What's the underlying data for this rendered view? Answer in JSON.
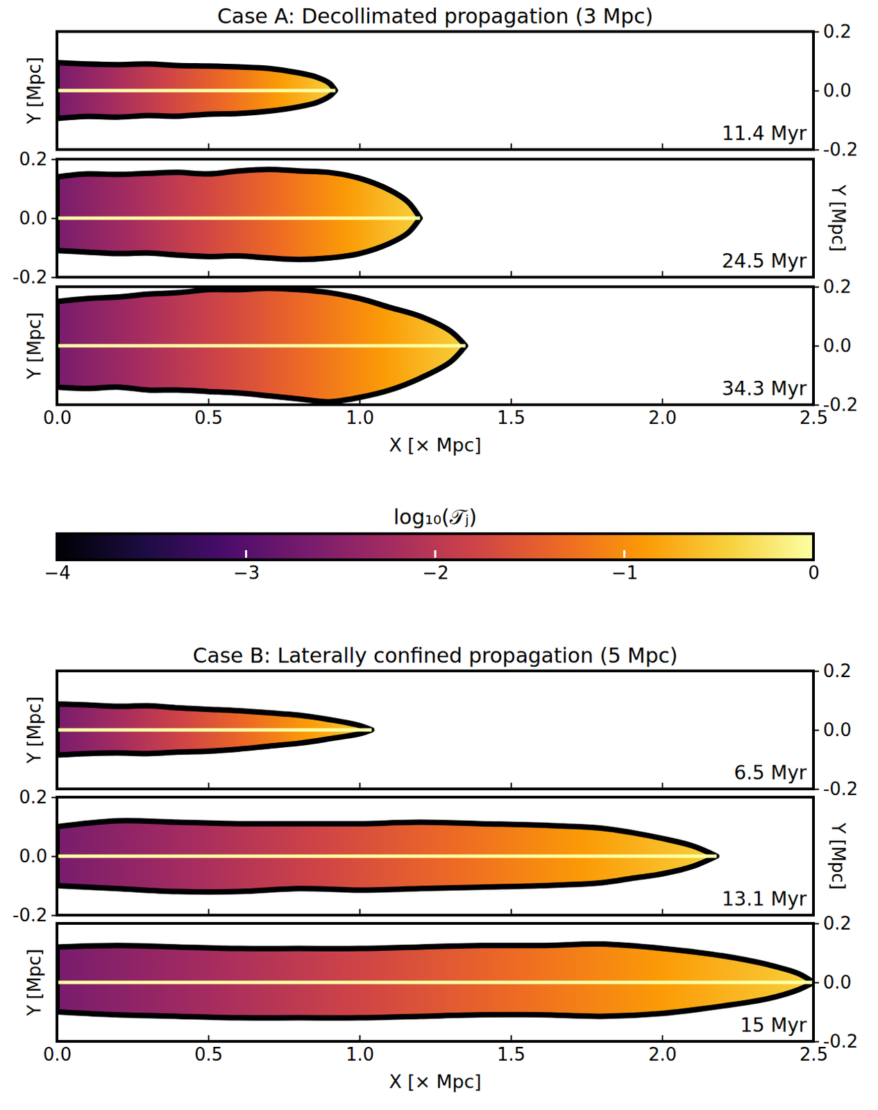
{
  "chart_data": [
    {
      "type": "area",
      "title": "Case A: Decollimated propagation (3 Mpc)",
      "ylabel": "Y [Mpc]",
      "annotation": "11.4 Myr",
      "xlim": [
        0,
        2.5
      ],
      "ylim": [
        -0.2,
        0.2
      ],
      "xticks": [
        {
          "value": 0,
          "label": "0.0"
        },
        0.5,
        {
          "value": 1,
          "label": "1.0"
        },
        1.5,
        {
          "value": 2,
          "label": "2.0"
        },
        2.5
      ],
      "yticks": [
        -0.2,
        {
          "value": 0,
          "label": "0.0"
        },
        0.2
      ],
      "tick_labels": "y",
      "x": [
        0,
        0.1,
        0.2,
        0.3,
        0.4,
        0.5,
        0.6,
        0.7,
        0.8,
        0.86,
        0.9,
        0.92
      ],
      "series": [
        {
          "color": "#000004",
          "values": [
            0.095,
            0.09,
            0.088,
            0.09,
            0.085,
            0.083,
            0.08,
            0.075,
            0.06,
            0.045,
            0.025,
            0
          ]
        },
        {
          "color": "#000004",
          "values": [
            -0.095,
            -0.088,
            -0.09,
            -0.085,
            -0.087,
            -0.08,
            -0.078,
            -0.07,
            -0.055,
            -0.04,
            -0.02,
            0
          ]
        },
        {
          "color": "#fcffa4",
          "type": "line",
          "values": [
            0,
            0,
            0,
            0,
            0,
            0,
            0,
            0,
            0,
            0,
            0,
            0
          ]
        }
      ]
    },
    {
      "type": "area",
      "ylabel": "Y [Mpc]",
      "annotation": "24.5 Myr",
      "xlim": [
        0,
        2.5
      ],
      "ylim": [
        -0.2,
        0.2
      ],
      "xticks": [
        {
          "value": 0,
          "label": "0.0"
        },
        0.5,
        {
          "value": 1,
          "label": "1.0"
        },
        1.5,
        {
          "value": 2,
          "label": "2.0"
        },
        2.5
      ],
      "yticks": [
        -0.2,
        {
          "value": 0,
          "label": "0.0"
        },
        0.2
      ],
      "tick_labels": "y",
      "x": [
        0,
        0.1,
        0.2,
        0.3,
        0.4,
        0.5,
        0.6,
        0.7,
        0.8,
        0.9,
        1.0,
        1.1,
        1.16,
        1.2
      ],
      "series": [
        {
          "color": "#000004",
          "values": [
            0.14,
            0.15,
            0.148,
            0.152,
            0.155,
            0.15,
            0.16,
            0.165,
            0.16,
            0.155,
            0.135,
            0.095,
            0.055,
            0
          ]
        },
        {
          "color": "#000004",
          "values": [
            -0.11,
            -0.115,
            -0.12,
            -0.118,
            -0.125,
            -0.13,
            -0.128,
            -0.135,
            -0.14,
            -0.135,
            -0.12,
            -0.085,
            -0.05,
            0
          ]
        },
        {
          "color": "#fcffa4",
          "type": "line",
          "values": [
            0,
            0,
            0,
            0,
            0,
            0,
            0,
            0,
            0,
            0,
            0,
            0,
            0,
            0
          ]
        }
      ]
    },
    {
      "type": "area",
      "xlabel": "X [× Mpc]",
      "ylabel": "Y [Mpc]",
      "annotation": "34.3 Myr",
      "xlim": [
        0,
        2.5
      ],
      "ylim": [
        -0.2,
        0.2
      ],
      "xticks": [
        {
          "value": 0,
          "label": "0.0"
        },
        0.5,
        {
          "value": 1,
          "label": "1.0"
        },
        1.5,
        {
          "value": 2,
          "label": "2.0"
        },
        2.5
      ],
      "yticks": [
        -0.2,
        {
          "value": 0,
          "label": "0.0"
        },
        0.2
      ],
      "x": [
        0,
        0.1,
        0.2,
        0.3,
        0.4,
        0.5,
        0.6,
        0.7,
        0.8,
        0.9,
        1.0,
        1.1,
        1.2,
        1.3,
        1.35
      ],
      "series": [
        {
          "color": "#000004",
          "values": [
            0.15,
            0.16,
            0.165,
            0.175,
            0.18,
            0.19,
            0.19,
            0.195,
            0.19,
            0.18,
            0.16,
            0.13,
            0.1,
            0.05,
            0
          ]
        },
        {
          "color": "#000004",
          "values": [
            -0.14,
            -0.145,
            -0.14,
            -0.15,
            -0.15,
            -0.155,
            -0.16,
            -0.17,
            -0.18,
            -0.19,
            -0.175,
            -0.15,
            -0.11,
            -0.055,
            0
          ]
        },
        {
          "color": "#fcffa4",
          "type": "line",
          "values": [
            0,
            0,
            0,
            0,
            0,
            0,
            0,
            0,
            0,
            0,
            0,
            0,
            0,
            0,
            0
          ]
        }
      ]
    },
    {
      "type": "area",
      "title": "Case B: Laterally confined propagation (5 Mpc)",
      "ylabel": "Y [Mpc]",
      "annotation": "6.5 Myr",
      "xlim": [
        0,
        2.5
      ],
      "ylim": [
        -0.2,
        0.2
      ],
      "xticks": [
        {
          "value": 0,
          "label": "0.0"
        },
        0.5,
        {
          "value": 1,
          "label": "1.0"
        },
        1.5,
        {
          "value": 2,
          "label": "2.0"
        },
        2.5
      ],
      "yticks": [
        -0.2,
        {
          "value": 0,
          "label": "0.0"
        },
        0.2
      ],
      "tick_labels": "y",
      "x": [
        0,
        0.1,
        0.2,
        0.3,
        0.4,
        0.5,
        0.6,
        0.7,
        0.8,
        0.9,
        1.0,
        1.04
      ],
      "series": [
        {
          "color": "#000004",
          "values": [
            0.088,
            0.085,
            0.08,
            0.082,
            0.075,
            0.07,
            0.065,
            0.058,
            0.05,
            0.035,
            0.015,
            0
          ]
        },
        {
          "color": "#000004",
          "values": [
            -0.085,
            -0.08,
            -0.078,
            -0.08,
            -0.075,
            -0.072,
            -0.065,
            -0.055,
            -0.045,
            -0.03,
            -0.013,
            0
          ]
        },
        {
          "color": "#fcffa4",
          "type": "line",
          "values": [
            0,
            0,
            0,
            0,
            0,
            0,
            0,
            0,
            0,
            0,
            0,
            0
          ]
        }
      ]
    },
    {
      "type": "area",
      "ylabel": "Y [Mpc]",
      "annotation": "13.1 Myr",
      "xlim": [
        0,
        2.5
      ],
      "ylim": [
        -0.2,
        0.2
      ],
      "xticks": [
        {
          "value": 0,
          "label": "0.0"
        },
        0.5,
        {
          "value": 1,
          "label": "1.0"
        },
        1.5,
        {
          "value": 2,
          "label": "2.0"
        },
        2.5
      ],
      "yticks": [
        -0.2,
        {
          "value": 0,
          "label": "0.0"
        },
        0.2
      ],
      "tick_labels": "y",
      "x": [
        0,
        0.2,
        0.4,
        0.6,
        0.8,
        1.0,
        1.2,
        1.4,
        1.6,
        1.8,
        1.9,
        2.0,
        2.1,
        2.18
      ],
      "series": [
        {
          "color": "#000004",
          "values": [
            0.1,
            0.12,
            0.115,
            0.11,
            0.11,
            0.11,
            0.115,
            0.11,
            0.105,
            0.095,
            0.08,
            0.06,
            0.035,
            0
          ]
        },
        {
          "color": "#000004",
          "values": [
            -0.1,
            -0.11,
            -0.12,
            -0.12,
            -0.11,
            -0.115,
            -0.11,
            -0.105,
            -0.1,
            -0.09,
            -0.075,
            -0.06,
            -0.035,
            0
          ]
        },
        {
          "color": "#fcffa4",
          "type": "line",
          "values": [
            0,
            0,
            0,
            0,
            0,
            0,
            0,
            0,
            0,
            0,
            0,
            0,
            0,
            0
          ]
        }
      ]
    },
    {
      "type": "area",
      "xlabel": "X [× Mpc]",
      "ylabel": "Y [Mpc]",
      "annotation": "15 Myr",
      "xlim": [
        0,
        2.5
      ],
      "ylim": [
        -0.2,
        0.2
      ],
      "xticks": [
        {
          "value": 0,
          "label": "0.0"
        },
        0.5,
        {
          "value": 1,
          "label": "1.0"
        },
        1.5,
        {
          "value": 2,
          "label": "2.0"
        },
        2.5
      ],
      "yticks": [
        -0.2,
        {
          "value": 0,
          "label": "0.0"
        },
        0.2
      ],
      "x": [
        0,
        0.2,
        0.4,
        0.6,
        0.8,
        1.0,
        1.2,
        1.4,
        1.6,
        1.8,
        2.0,
        2.2,
        2.35,
        2.45,
        2.5
      ],
      "series": [
        {
          "color": "#000004",
          "values": [
            0.12,
            0.125,
            0.12,
            0.115,
            0.115,
            0.115,
            0.12,
            0.125,
            0.125,
            0.13,
            0.115,
            0.09,
            0.06,
            0.03,
            0
          ]
        },
        {
          "color": "#000004",
          "values": [
            -0.1,
            -0.11,
            -0.115,
            -0.12,
            -0.12,
            -0.12,
            -0.115,
            -0.11,
            -0.11,
            -0.115,
            -0.105,
            -0.08,
            -0.055,
            -0.025,
            0
          ]
        },
        {
          "color": "#fcffa4",
          "type": "line",
          "values": [
            0,
            0,
            0,
            0,
            0,
            0,
            0,
            0,
            0,
            0,
            0,
            0,
            0,
            0,
            0
          ]
        }
      ]
    }
  ],
  "colorbar": {
    "title": "log₁₀(𝒯ⱼ)",
    "range": [
      -4,
      0
    ],
    "ticks": [
      {
        "value": -4,
        "label": "−4"
      },
      {
        "value": -3,
        "label": "−3"
      },
      {
        "value": -2,
        "label": "−2"
      },
      {
        "value": -1,
        "label": "−1"
      },
      0
    ],
    "colors": [
      "#000004",
      "#1b0c41",
      "#4a0c6b",
      "#781c6d",
      "#a52c60",
      "#cf4446",
      "#ed6925",
      "#fb9b06",
      "#f7d13d",
      "#fcffa4"
    ]
  }
}
